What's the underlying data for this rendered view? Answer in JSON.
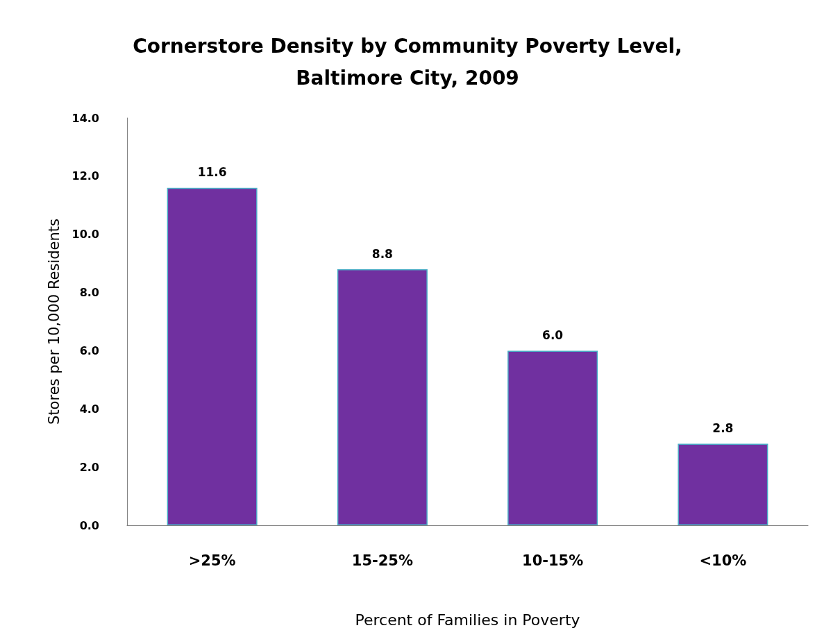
{
  "chart_data": {
    "type": "bar",
    "title": "Cornerstore Density by Community Poverty Level,\nBaltimore City, 2009",
    "xlabel": "Percent of Families in Poverty",
    "ylabel": "Stores per 10,000 Residents",
    "categories": [
      ">25%",
      "15-25%",
      "10-15%",
      "<10%"
    ],
    "values": [
      11.6,
      8.8,
      6.0,
      2.8
    ],
    "color": "#7030a0",
    "ylim": [
      0,
      14
    ],
    "yticks": [
      {
        "value": 0,
        "label": "0.0"
      },
      {
        "value": 2,
        "label": "2.0"
      },
      {
        "value": 4,
        "label": "4.0"
      },
      {
        "value": 6,
        "label": "6.0"
      },
      {
        "value": 8,
        "label": "8.0"
      },
      {
        "value": 10,
        "label": "10.0"
      },
      {
        "value": 12,
        "label": "12.0"
      },
      {
        "value": 14,
        "label": "14.0"
      }
    ],
    "value_labels": [
      "11.6",
      "8.8",
      "6.0",
      "2.8"
    ]
  }
}
